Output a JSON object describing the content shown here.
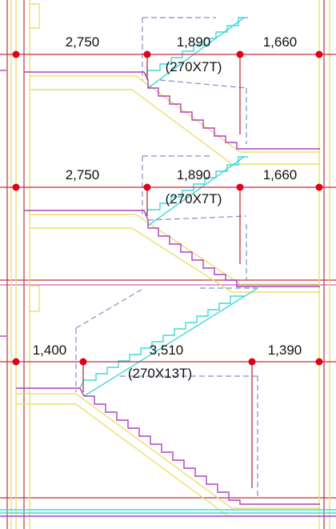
{
  "drawing": {
    "sections": [
      {
        "dims": [
          "2,750",
          "1,890",
          "1,660"
        ],
        "stair_note": "(270X7T)"
      },
      {
        "dims": [
          "2,750",
          "1,890",
          "1,660"
        ],
        "stair_note": "(270X7T)"
      },
      {
        "dims": [
          "1,400",
          "3,510",
          "1,390"
        ],
        "stair_note": "(270X13T)"
      }
    ]
  },
  "colors": {
    "dimension_line": "#c0303a",
    "dimension_node": "#e0001b",
    "wall_line": "#e8e070",
    "stair_profile": "#b040c0",
    "stair_nosing": "#40d8d8",
    "hidden_line": "#8090c8",
    "frame_line": "#c0303a"
  }
}
